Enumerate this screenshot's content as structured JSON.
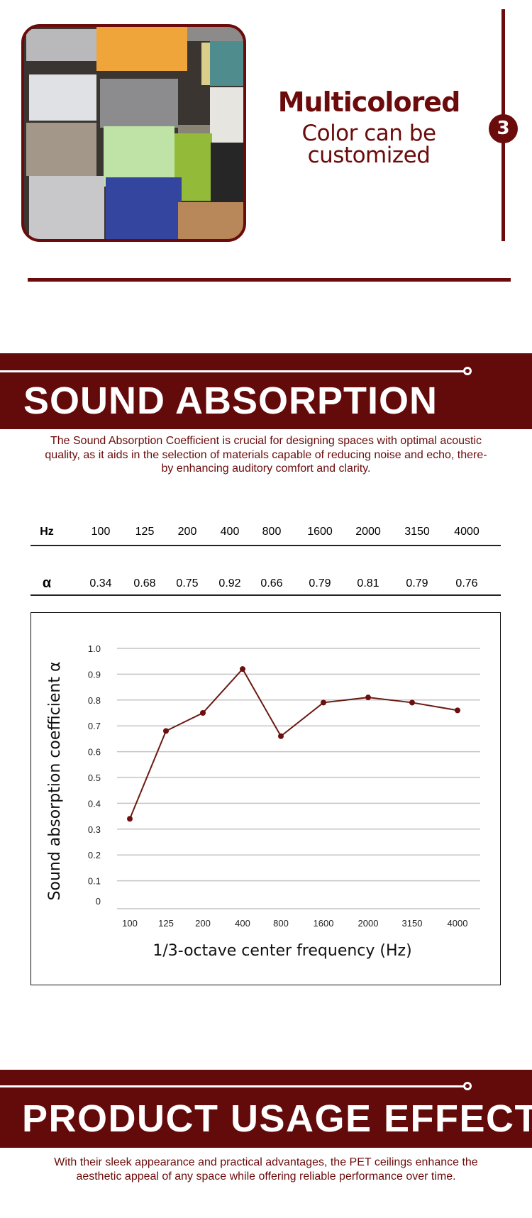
{
  "feature": {
    "title": "Multicolored",
    "subtitle_line1": "Color can be",
    "subtitle_line2": "customized",
    "step_number": "3",
    "image_alt": "stack of multicolored PET felt panels"
  },
  "sound_absorption": {
    "title": "SOUND ABSORPTION",
    "description_line1": "The Sound Absorption Coefficient is crucial for designing spaces with optimal acoustic",
    "description_line2": "quality, as it aids in the selection of materials capable of reducing noise and echo, there-",
    "description_line3": "by enhancing auditory comfort and clarity.",
    "table": {
      "row_headers": [
        "Hz",
        "α"
      ],
      "frequencies": [
        "100",
        "125",
        "200",
        "400",
        "800",
        "1600",
        "2000",
        "3150",
        "4000"
      ],
      "alpha": [
        "0.34",
        "0.68",
        "0.75",
        "0.92",
        "0.66",
        "0.79",
        "0.81",
        "0.79",
        "0.76"
      ]
    }
  },
  "chart_data": {
    "type": "line",
    "categories": [
      "100",
      "125",
      "200",
      "400",
      "800",
      "1600",
      "2000",
      "3150",
      "4000"
    ],
    "values": [
      0.34,
      0.68,
      0.75,
      0.92,
      0.66,
      0.79,
      0.81,
      0.79,
      0.76
    ],
    "xlabel": "1/3-octave center frequency (Hz)",
    "ylabel": "Sound absorption coefficient α",
    "ylim": [
      0,
      1.0
    ],
    "yticks": [
      "0",
      "0.1",
      "0.2",
      "0.3",
      "0.4",
      "0.5",
      "0.6",
      "0.7",
      "0.8",
      "0.9",
      "1.0"
    ],
    "grid": true,
    "line_color": "#6b1a12"
  },
  "usage": {
    "title": "PRODUCT USAGE EFFECT",
    "description_line1": "With their sleek appearance and practical advantages, the PET ceilings enhance the",
    "description_line2": "aesthetic appeal of any space while offering reliable performance over time."
  },
  "colors": {
    "brand": "#630a0a",
    "accent": "#6b0b0b"
  }
}
